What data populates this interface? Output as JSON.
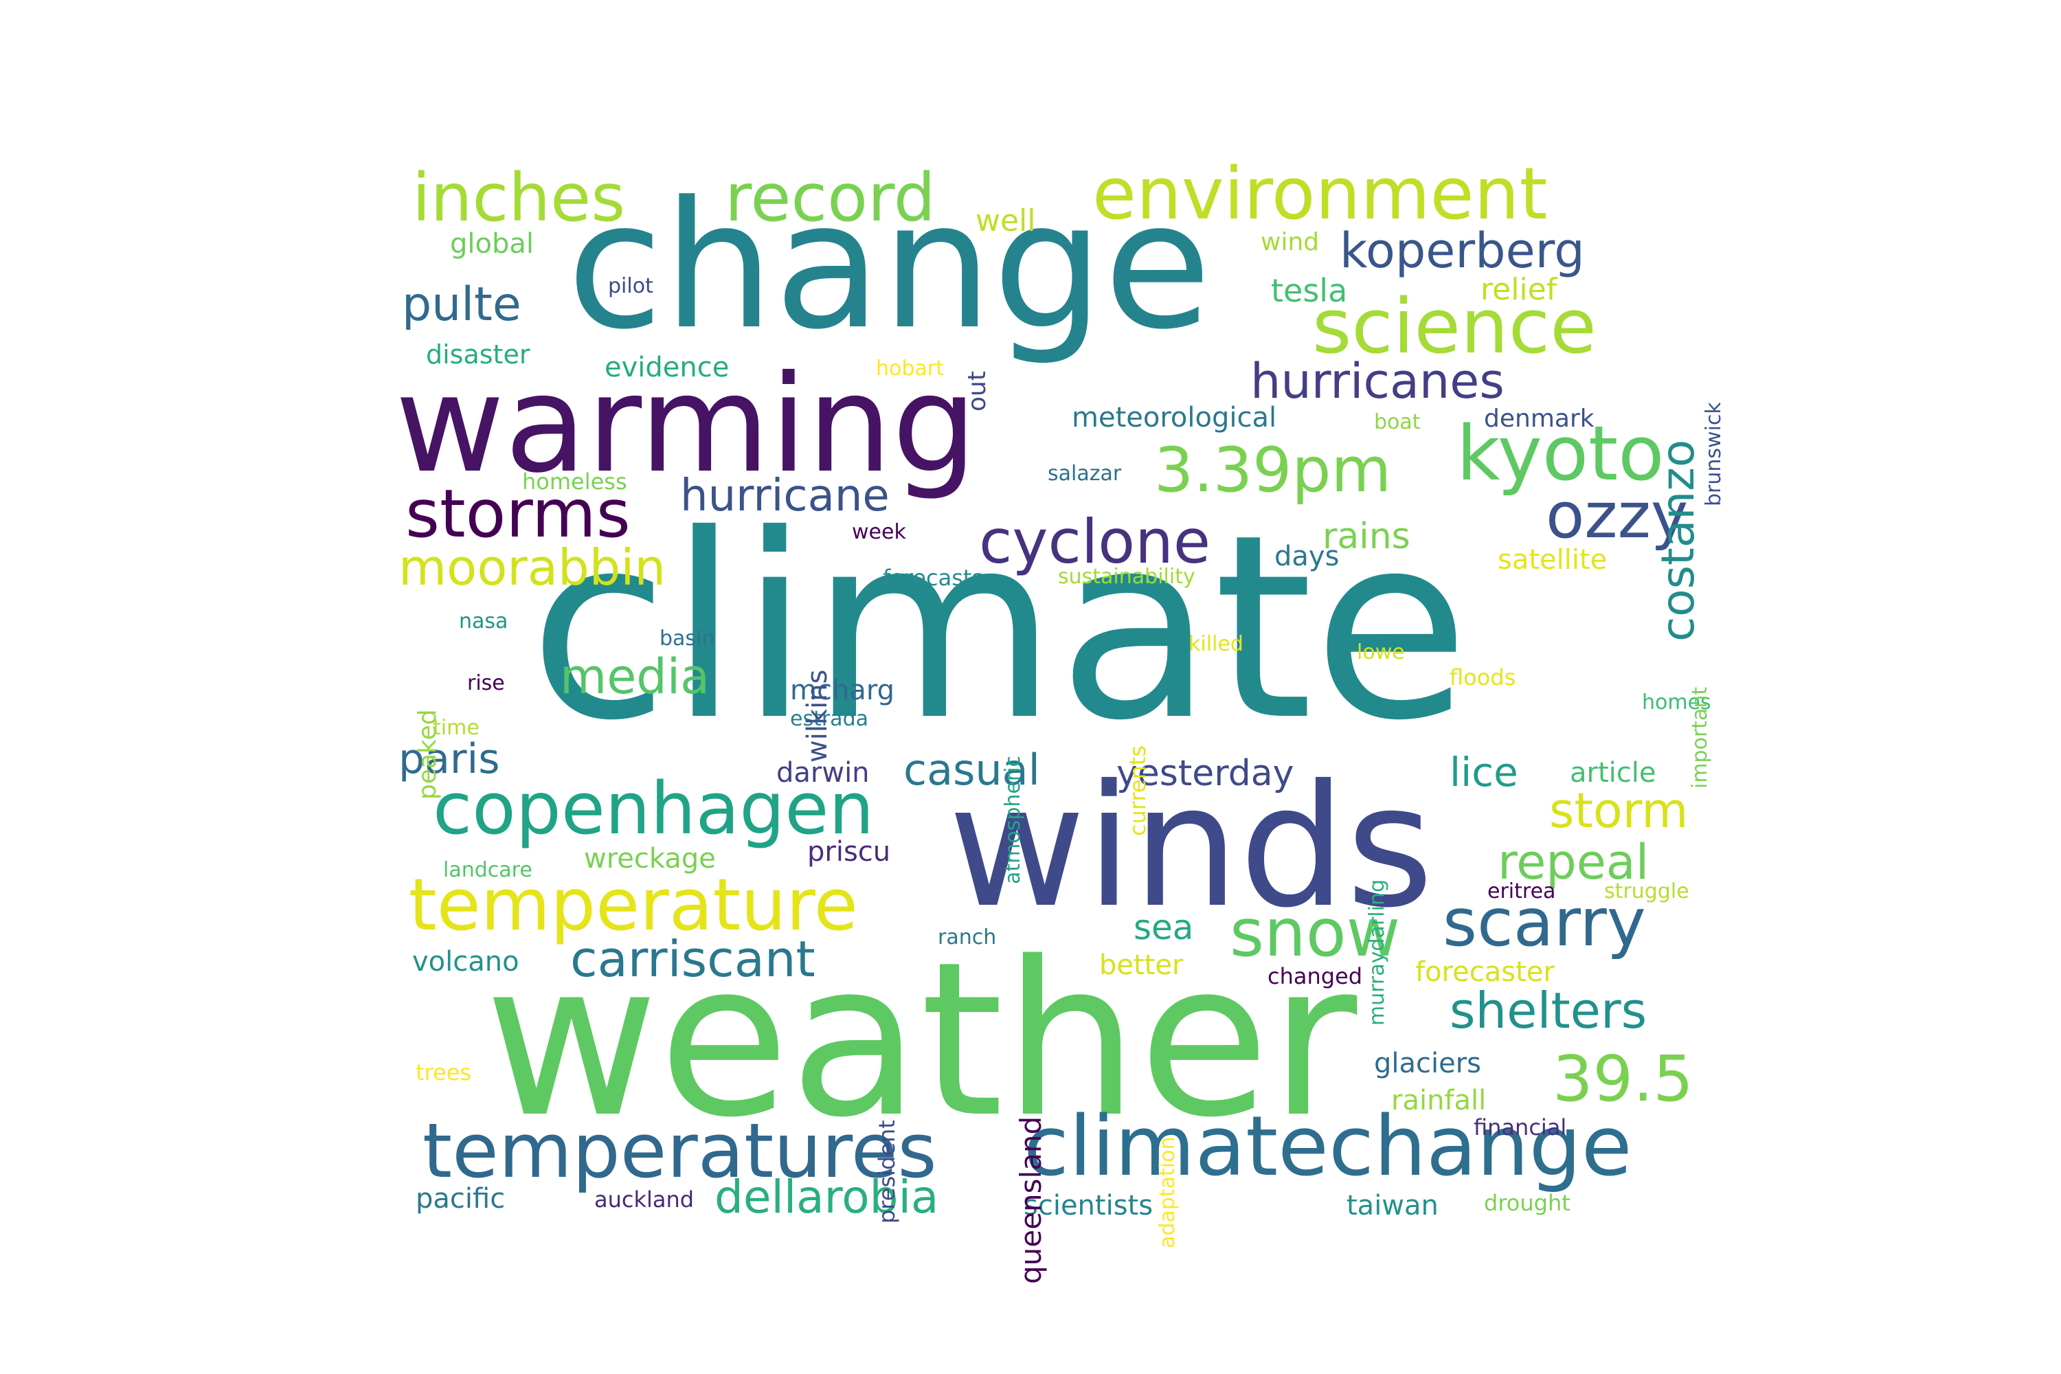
{
  "words": {
    "climate": {
      "text": "climate",
      "color": "#228a8d"
    },
    "weather": {
      "text": "weather",
      "color": "#5ec962"
    },
    "change": {
      "text": "change",
      "color": "#25838e"
    },
    "winds": {
      "text": "winds",
      "color": "#3e4a89"
    },
    "warming": {
      "text": "warming",
      "color": "#471365"
    },
    "climatechange": {
      "text": "climatechange",
      "color": "#2e6e8e"
    },
    "temperatures": {
      "text": "temperatures",
      "color": "#31688e"
    },
    "copenhagen": {
      "text": "copenhagen",
      "color": "#20a386"
    },
    "temperature": {
      "text": "temperature",
      "color": "#e5e419"
    },
    "environment": {
      "text": "environment",
      "color": "#bddf26"
    },
    "science": {
      "text": "science",
      "color": "#a5db36"
    },
    "kyoto": {
      "text": "kyoto",
      "color": "#5ec962"
    },
    "inches": {
      "text": "inches",
      "color": "#a5db36"
    },
    "record": {
      "text": "record",
      "color": "#7ad151"
    },
    "storms": {
      "text": "storms",
      "color": "#440154"
    },
    "cyclone": {
      "text": "cyclone",
      "color": "#46327e"
    },
    "ozzy": {
      "text": "ozzy",
      "color": "#3b528b"
    },
    "snow": {
      "text": "snow",
      "color": "#5ec962"
    },
    "scarry": {
      "text": "scarry",
      "color": "#31688e"
    },
    "pm": {
      "text": "3.39pm",
      "color": "#7ad151"
    },
    "n395": {
      "text": "39.5",
      "color": "#7ad151"
    },
    "koperberg": {
      "text": "koperberg",
      "color": "#39568c"
    },
    "hurricanes": {
      "text": "hurricanes",
      "color": "#433e85"
    },
    "hurricane": {
      "text": "hurricane",
      "color": "#3b528b"
    },
    "moorabbin": {
      "text": "moorabbin",
      "color": "#d2e21b"
    },
    "carriscant": {
      "text": "carriscant",
      "color": "#2a788e"
    },
    "dellarobia": {
      "text": "dellarobia",
      "color": "#29af7f"
    },
    "shelters": {
      "text": "shelters",
      "color": "#21918c"
    },
    "costanzo": {
      "text": "costanzo",
      "color": "#228c8d"
    },
    "pulte": {
      "text": "pulte",
      "color": "#306a8e"
    },
    "storm": {
      "text": "storm",
      "color": "#d8e219"
    },
    "repeal": {
      "text": "repeal",
      "color": "#6ccd5a"
    },
    "media": {
      "text": "media",
      "color": "#54c568"
    },
    "paris": {
      "text": "paris",
      "color": "#306a8e"
    },
    "casual": {
      "text": "casual",
      "color": "#2a788e"
    },
    "yesterday": {
      "text": "yesterday",
      "color": "#3e4a89"
    },
    "lice": {
      "text": "lice",
      "color": "#1e9c89"
    },
    "rains": {
      "text": "rains",
      "color": "#7ad151"
    },
    "tesla": {
      "text": "tesla",
      "color": "#44bf70"
    },
    "well": {
      "text": "well",
      "color": "#bddf26"
    },
    "wind": {
      "text": "wind",
      "color": "#a5db36"
    },
    "relief": {
      "text": "relief",
      "color": "#c2df23"
    },
    "meteorological": {
      "text": "meteorological",
      "color": "#2a788e"
    },
    "denmark": {
      "text": "denmark",
      "color": "#3b528b"
    },
    "boat": {
      "text": "boat",
      "color": "#8ed645"
    },
    "global": {
      "text": "global",
      "color": "#6ccd5a"
    },
    "pilot": {
      "text": "pilot",
      "color": "#3f4889"
    },
    "disaster": {
      "text": "disaster",
      "color": "#26ad81"
    },
    "evidence": {
      "text": "evidence",
      "color": "#25ab82"
    },
    "hobart": {
      "text": "hobart",
      "color": "#fde725"
    },
    "out": {
      "text": "out",
      "color": "#3e4989"
    },
    "brunswick": {
      "text": "brunswick",
      "color": "#3b528b"
    },
    "homeless": {
      "text": "homeless",
      "color": "#7ad151"
    },
    "salazar": {
      "text": "salazar",
      "color": "#2c718e"
    },
    "week": {
      "text": "week",
      "color": "#440154"
    },
    "forecasts": {
      "text": "forecasts",
      "color": "#218e8d"
    },
    "sustainability": {
      "text": "sustainability",
      "color": "#a0da39"
    },
    "days": {
      "text": "days",
      "color": "#2a788e"
    },
    "satellite": {
      "text": "satellite",
      "color": "#e5e419"
    },
    "nasa": {
      "text": "nasa",
      "color": "#1f948c"
    },
    "basin": {
      "text": "basin",
      "color": "#2c728e"
    },
    "rise": {
      "text": "rise",
      "color": "#440154"
    },
    "time": {
      "text": "time",
      "color": "#b5de2b"
    },
    "peaked": {
      "text": "peaked",
      "color": "#95d840"
    },
    "wilkins": {
      "text": "wilkins",
      "color": "#3b528b"
    },
    "atmospheric": {
      "text": "atmospheric",
      "color": "#20a486"
    },
    "currents": {
      "text": "currents",
      "color": "#e5e419"
    },
    "killed": {
      "text": "killed",
      "color": "#e5e419"
    },
    "lowe": {
      "text": "lowe",
      "color": "#d2e21b"
    },
    "floods": {
      "text": "floods",
      "color": "#e5e419"
    },
    "important": {
      "text": "important",
      "color": "#7ad151"
    },
    "homes": {
      "text": "homes",
      "color": "#3dbc74"
    },
    "mcharg": {
      "text": "mcharg",
      "color": "#31688e"
    },
    "estrada": {
      "text": "estrada",
      "color": "#27808e"
    },
    "darwin": {
      "text": "darwin",
      "color": "#433e85"
    },
    "priscu": {
      "text": "priscu",
      "color": "#472d7b"
    },
    "wreckage": {
      "text": "wreckage",
      "color": "#7ad151"
    },
    "landcare": {
      "text": "landcare",
      "color": "#54c568"
    },
    "murraydarling": {
      "text": "murraydarling",
      "color": "#29af7f"
    },
    "article": {
      "text": "article",
      "color": "#44bf70"
    },
    "eritrea": {
      "text": "eritrea",
      "color": "#440154"
    },
    "struggle": {
      "text": "struggle",
      "color": "#b5de2b"
    },
    "volcano": {
      "text": "volcano",
      "color": "#21918c"
    },
    "ranch": {
      "text": "ranch",
      "color": "#2a788e"
    },
    "queensland": {
      "text": "queensland",
      "color": "#440154"
    },
    "sea": {
      "text": "sea",
      "color": "#23a983"
    },
    "better": {
      "text": "better",
      "color": "#d8e219"
    },
    "changed": {
      "text": "changed",
      "color": "#440154"
    },
    "forecaster": {
      "text": "forecaster",
      "color": "#d8e219"
    },
    "president": {
      "text": "president",
      "color": "#3e4989"
    },
    "adaptation": {
      "text": "adaptation",
      "color": "#fde725"
    },
    "trees": {
      "text": "trees",
      "color": "#fde725"
    },
    "glaciers": {
      "text": "glaciers",
      "color": "#2f6b8e"
    },
    "rainfall": {
      "text": "rainfall",
      "color": "#95d840"
    },
    "financial": {
      "text": "financial",
      "color": "#472f7d"
    },
    "pacific": {
      "text": "pacific",
      "color": "#2a788e"
    },
    "auckland": {
      "text": "auckland",
      "color": "#482878"
    },
    "scientists": {
      "text": "scientists",
      "color": "#25848e"
    },
    "taiwan": {
      "text": "taiwan",
      "color": "#21918c"
    },
    "drought": {
      "text": "drought",
      "color": "#7ad151"
    }
  }
}
